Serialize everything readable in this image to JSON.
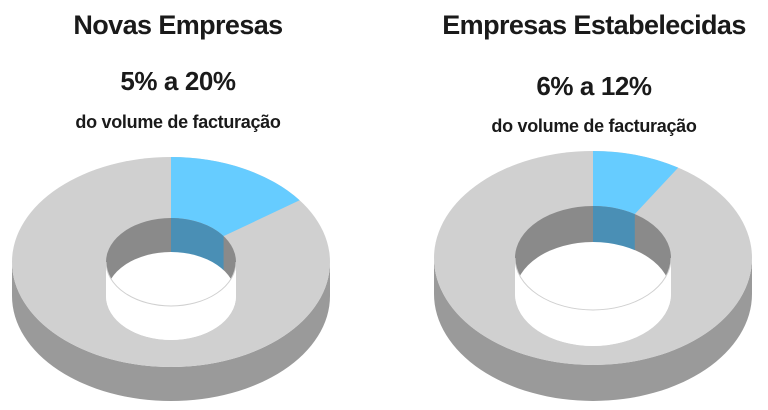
{
  "charts": [
    {
      "title": "Novas Empresas",
      "range": "5% a 20%",
      "subtitle": "do volume de facturação"
    },
    {
      "title": "Empresas Estabelecidas",
      "range": "6% a 12%",
      "subtitle": "do volume de facturação"
    }
  ],
  "chart_data": [
    {
      "type": "pie",
      "title": "Novas Empresas",
      "highlight_range_percent": [
        5,
        20
      ],
      "slices": [
        {
          "value": 15,
          "color": "#66ccff"
        },
        {
          "value": 85,
          "color": "#d0d0d0"
        }
      ]
    },
    {
      "type": "pie",
      "title": "Empresas Estabelecidas",
      "highlight_range_percent": [
        6,
        12
      ],
      "slices": [
        {
          "value": 9,
          "color": "#66ccff"
        },
        {
          "value": 91,
          "color": "#d0d0d0"
        }
      ]
    }
  ],
  "colors": {
    "highlight_top": "#66ccff",
    "highlight_side": "#4a8fb5",
    "ring_top": "#d0d0d0",
    "ring_side": "#9a9a9a",
    "ring_inner_side": "#8a8a8a",
    "text": "#1a1a1a"
  }
}
